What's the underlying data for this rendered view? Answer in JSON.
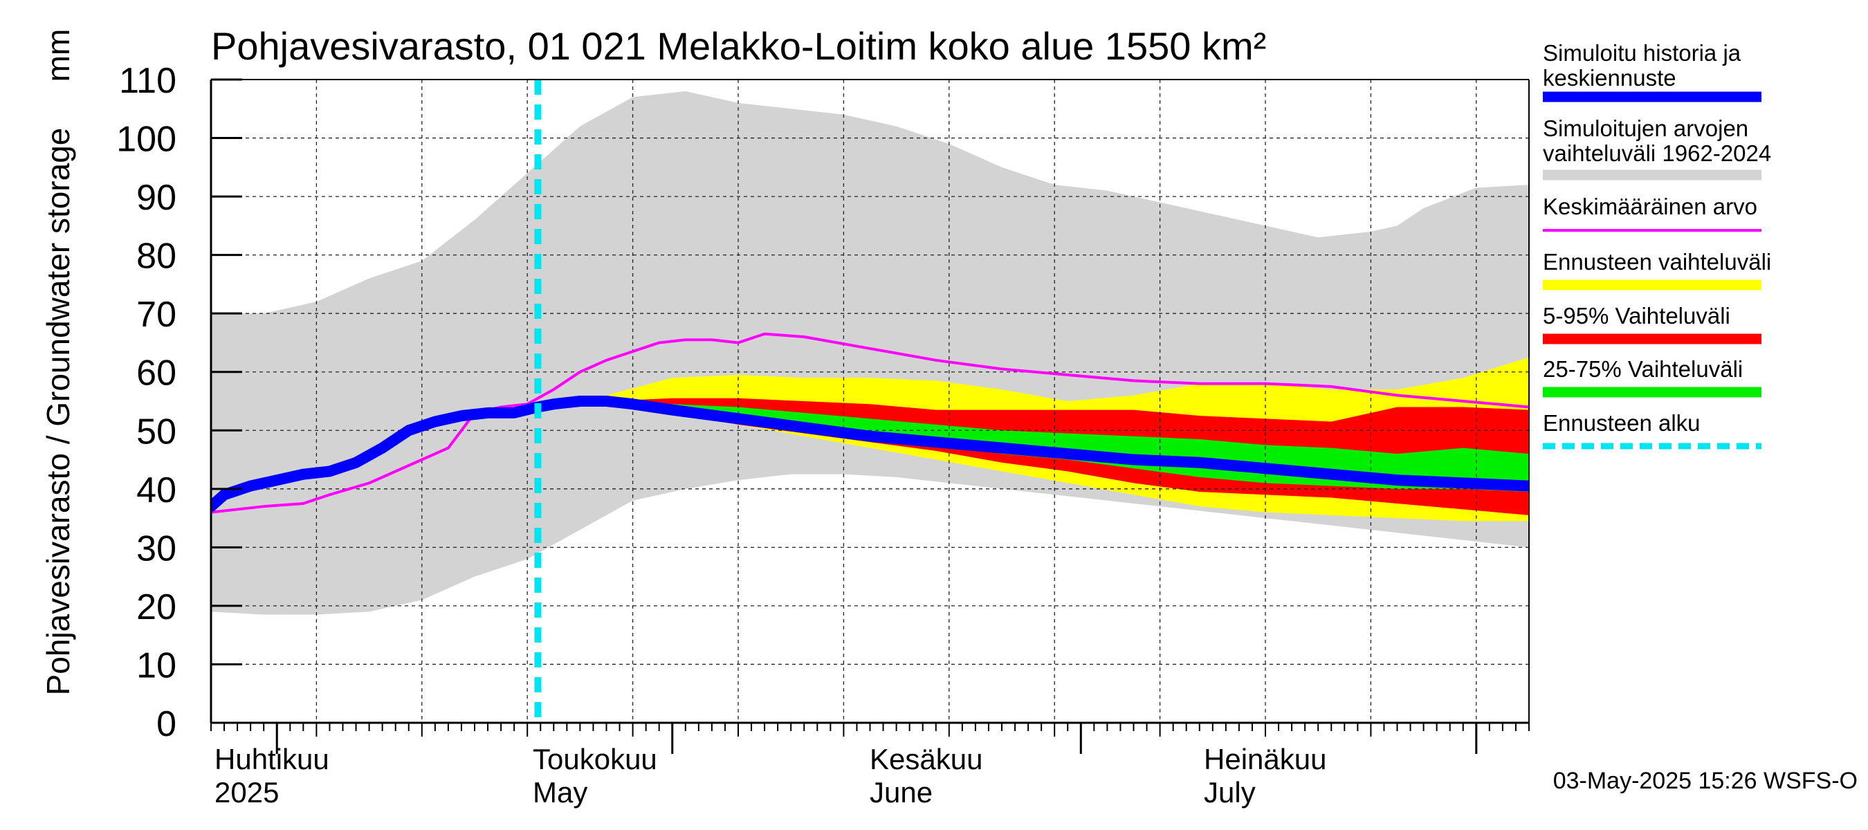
{
  "chart_data": {
    "type": "area",
    "title": "Pohjavesivarasto, 01 021 Melakko-Loitim koko alue 1550 km²",
    "ylabel": "Pohjavesivarasto / Groundwater storage",
    "yunit": "mm",
    "ylim": [
      0,
      110
    ],
    "yticks": [
      0,
      10,
      20,
      30,
      40,
      50,
      60,
      70,
      80,
      90,
      100,
      110
    ],
    "x_domain_days": [
      0,
      100
    ],
    "x_unit": "days since 2025-03-27",
    "month_labels": [
      {
        "fi": "Huhtikuu",
        "en": "2025",
        "day": 1
      },
      {
        "fi": "Toukokuu",
        "en": "May",
        "day": 25
      },
      {
        "fi": "Kesäkuu",
        "en": "June",
        "day": 56
      },
      {
        "fi": "Heinäkuu",
        "en": "July",
        "day": 86
      }
    ],
    "forecast_start_day": 24.8,
    "series": [
      {
        "name": "Simuloitujen arvojen vaihteluväli 1962-2024",
        "kind": "band",
        "color": "#d3d3d3",
        "x": [
          0,
          4,
          8,
          12,
          16,
          20,
          24,
          28,
          32,
          36,
          40,
          44,
          48,
          52,
          56,
          60,
          64,
          68,
          72,
          76,
          80,
          84,
          88,
          90,
          92,
          96,
          100
        ],
        "upper": [
          70,
          70,
          72,
          76,
          79,
          86,
          94,
          102,
          107,
          108,
          106,
          105,
          104,
          102,
          99,
          95,
          92,
          91,
          89,
          87,
          85,
          83,
          84,
          85,
          88,
          91.5,
          92
        ],
        "lower": [
          19,
          18.5,
          18.5,
          19,
          21,
          25,
          28,
          33,
          38,
          40,
          41.5,
          42.5,
          42.5,
          42,
          41,
          40,
          39,
          38,
          37,
          36,
          35,
          34,
          33,
          32.5,
          32,
          31,
          30
        ]
      },
      {
        "name": "Ennusteen vaihteluväli",
        "kind": "band",
        "color": "#ffff00",
        "x": [
          25,
          30,
          35,
          40,
          45,
          50,
          55,
          60,
          65,
          70,
          75,
          80,
          85,
          90,
          95,
          100
        ],
        "upper": [
          55,
          56,
          59,
          59.5,
          59,
          59,
          58.5,
          57,
          55,
          56,
          58,
          58,
          57,
          57,
          59,
          62.5
        ],
        "lower": [
          55,
          54.5,
          53,
          51,
          49,
          47,
          45,
          43,
          41,
          39,
          37,
          36,
          35.5,
          35,
          34.5,
          34.5
        ]
      },
      {
        "name": "5-95% Vaihteluväli",
        "kind": "band",
        "color": "#ff0000",
        "x": [
          25,
          30,
          35,
          40,
          45,
          50,
          55,
          60,
          65,
          70,
          75,
          80,
          85,
          90,
          95,
          100
        ],
        "upper": [
          55,
          55,
          55.5,
          55.5,
          55,
          54.5,
          53.5,
          53.5,
          53.5,
          53.5,
          52.5,
          52,
          51.5,
          54,
          54,
          53.5
        ],
        "lower": [
          55,
          54.5,
          53,
          51,
          49.5,
          48,
          46.5,
          44.5,
          43,
          41,
          39.5,
          39,
          38.5,
          37.5,
          36.5,
          35.5
        ]
      },
      {
        "name": "25-75% Vaihteluväli",
        "kind": "band",
        "color": "#00ee00",
        "x": [
          25,
          30,
          35,
          40,
          45,
          50,
          55,
          60,
          65,
          70,
          75,
          80,
          85,
          90,
          95,
          100
        ],
        "upper": [
          55,
          55,
          54.5,
          54,
          53,
          52,
          51,
          50,
          49.5,
          49,
          48.5,
          47.5,
          47,
          46,
          47,
          46
        ],
        "lower": [
          55,
          54.5,
          53.5,
          52,
          50.5,
          49,
          47.5,
          46,
          45,
          43.5,
          42,
          41,
          40.5,
          40,
          40,
          39.5
        ]
      },
      {
        "name": "Keskimääräinen arvo",
        "kind": "line",
        "color": "#ff00ff",
        "x": [
          0,
          4,
          7,
          9,
          12,
          15,
          18,
          20,
          22,
          24,
          26,
          28,
          30,
          32,
          34,
          36,
          38,
          40,
          42,
          45,
          50,
          55,
          60,
          65,
          70,
          75,
          80,
          85,
          90,
          95,
          100
        ],
        "values": [
          36,
          37,
          37.5,
          39,
          41,
          44,
          47,
          53,
          54,
          54.5,
          57,
          60,
          62,
          63.5,
          65,
          65.5,
          65.5,
          65,
          66.5,
          66,
          64,
          62,
          60.5,
          59.5,
          58.5,
          58,
          58,
          57.5,
          56,
          55,
          54
        ]
      },
      {
        "name": "Simuloitu historia ja keskiennuste",
        "kind": "line",
        "color": "#0000ff",
        "x": [
          0,
          1,
          3,
          5,
          7,
          9,
          11,
          13,
          15,
          17,
          19,
          21,
          23,
          24.8,
          26,
          28,
          30,
          32,
          35,
          40,
          45,
          50,
          55,
          60,
          65,
          70,
          75,
          80,
          85,
          90,
          95,
          100
        ],
        "values": [
          37,
          39,
          40.5,
          41.5,
          42.5,
          43,
          44.5,
          47,
          50,
          51.5,
          52.5,
          53,
          53,
          54,
          54.5,
          55,
          55,
          54.5,
          53.5,
          52,
          50.5,
          49,
          48,
          47,
          46,
          45,
          44.5,
          43.5,
          42.5,
          41.5,
          41,
          40.5
        ]
      }
    ],
    "legend": [
      {
        "label": "Simuloitu historia ja keskiennuste",
        "color": "#0000ff",
        "style": "thick"
      },
      {
        "label": "Simuloitujen arvojen vaihteluväli 1962-2024",
        "color": "#d3d3d3",
        "style": "thick"
      },
      {
        "label": "Keskimääräinen arvo",
        "color": "#ff00ff",
        "style": "thin"
      },
      {
        "label": "Ennusteen vaihteluväli",
        "color": "#ffff00",
        "style": "thick"
      },
      {
        "label": "5-95% Vaihteluväli",
        "color": "#ff0000",
        "style": "thick"
      },
      {
        "label": "25-75% Vaihteluväli",
        "color": "#00ee00",
        "style": "thick"
      },
      {
        "label": "Ennusteen alku",
        "color": "#00e5f0",
        "style": "dashed"
      }
    ],
    "footer": "03-May-2025 15:26 WSFS-O"
  }
}
